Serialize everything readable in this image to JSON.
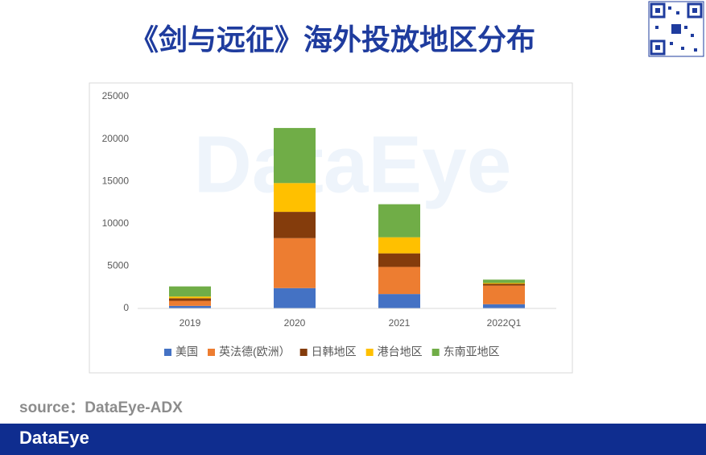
{
  "title": "《剑与远征》海外投放地区分布",
  "watermark": "DataEye",
  "source": "source：DataEye-ADX",
  "footer_logo": "DataEye",
  "chart_data": {
    "type": "stacked-bar",
    "categories": [
      "2019",
      "2020",
      "2021",
      "2022Q1"
    ],
    "series": [
      {
        "name": "美国",
        "color": "#4472c4",
        "values": [
          300,
          2400,
          1700,
          500
        ]
      },
      {
        "name": "英法德(欧洲）",
        "color": "#ed7d31",
        "values": [
          600,
          5900,
          3200,
          2200
        ]
      },
      {
        "name": "日韩地区",
        "color": "#843c0c",
        "values": [
          300,
          3100,
          1600,
          200
        ]
      },
      {
        "name": "港台地区",
        "color": "#ffc000",
        "values": [
          200,
          3400,
          1900,
          100
        ]
      },
      {
        "name": "东南亚地区",
        "color": "#70ad47",
        "values": [
          1200,
          6500,
          3900,
          400
        ]
      }
    ],
    "ylim": [
      0,
      25000
    ],
    "yticks": [
      0,
      5000,
      10000,
      15000,
      20000,
      25000
    ],
    "grid": false
  }
}
